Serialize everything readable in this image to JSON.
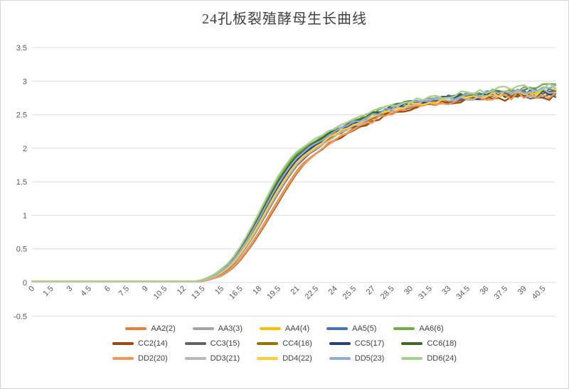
{
  "title": "24孔板裂殖酵母生长曲线",
  "styles": {
    "background": "#FFFFFF",
    "frame_border": "#D5D5D5",
    "grid_color": "#DCDCDC",
    "axis_text_color": "#595959",
    "title_color": "#404040",
    "legend_text_color": "#404040"
  },
  "chart_data": {
    "type": "line",
    "title": "24孔板裂殖酵母生长曲线",
    "xlabel": "",
    "ylabel": "",
    "grid": "horizontal",
    "legend_position": "bottom",
    "xlim": [
      0,
      41.5
    ],
    "ylim": [
      -0.5,
      3.5
    ],
    "x_start": 0,
    "x_step": 0.5,
    "n_points": 84,
    "x_tick_step": 1.5,
    "x_tick_labels": [
      "0",
      "1.5",
      "3",
      "4.5",
      "6",
      "7.5",
      "9",
      "10.5",
      "12",
      "13.5",
      "15",
      "16.5",
      "18",
      "19.5",
      "21",
      "22.5",
      "24",
      "25.5",
      "27",
      "28.5",
      "30",
      "31.5",
      "33",
      "34.5",
      "36",
      "37.5",
      "39",
      "40.5"
    ],
    "y_ticks": [
      3.5,
      3,
      2.5,
      2,
      1.5,
      1,
      0.5,
      0,
      -0.5
    ],
    "y_tick_labels": [
      "3.5",
      "3",
      "2.5",
      "2",
      "1.5",
      "1",
      "0.5",
      "0",
      "-0.5"
    ],
    "values_formula": "value[i] = base[i] + offset*spread[i] + end_bias*clamp((i-64)/19,0,1) + hashnoise(seed,i)*noise_amp[i]",
    "base": [
      0.02,
      0.02,
      0.02,
      0.02,
      0.02,
      0.02,
      0.02,
      0.02,
      0.02,
      0.02,
      0.02,
      0.02,
      0.02,
      0.02,
      0.02,
      0.02,
      0.02,
      0.02,
      0.02,
      0.02,
      0.02,
      0.02,
      0.02,
      0.02,
      0.02,
      0.02,
      0.02,
      0.03,
      0.06,
      0.1,
      0.15,
      0.22,
      0.31,
      0.43,
      0.57,
      0.72,
      0.88,
      1.05,
      1.22,
      1.38,
      1.53,
      1.67,
      1.79,
      1.89,
      1.97,
      2.04,
      2.1,
      2.17,
      2.23,
      2.28,
      2.32,
      2.37,
      2.41,
      2.46,
      2.5,
      2.54,
      2.58,
      2.61,
      2.64,
      2.66,
      2.68,
      2.7,
      2.72,
      2.74,
      2.75,
      2.77,
      2.78,
      2.79,
      2.8,
      2.81,
      2.82,
      2.83,
      2.84,
      2.85,
      2.85,
      2.86,
      2.86,
      2.87,
      2.87,
      2.88,
      2.88,
      2.89,
      2.89,
      2.9
    ],
    "spread": [
      0,
      0,
      0,
      0,
      0,
      0,
      0,
      0,
      0,
      0,
      0,
      0,
      0,
      0,
      0,
      0,
      0,
      0,
      0,
      0,
      0,
      0,
      0,
      0,
      0,
      0,
      0,
      0.01,
      0.02,
      0.03,
      0.05,
      0.06,
      0.08,
      0.1,
      0.12,
      0.14,
      0.16,
      0.18,
      0.19,
      0.2,
      0.19,
      0.18,
      0.16,
      0.14,
      0.13,
      0.12,
      0.11,
      0.1,
      0.09,
      0.09,
      0.08,
      0.08,
      0.07,
      0.07,
      0.07,
      0.06,
      0.06,
      0.06,
      0.05,
      0.05,
      0.05,
      0.05,
      0.04,
      0.04,
      0.04,
      0.04,
      0.04,
      0.04,
      0.04,
      0.03,
      0.03,
      0.03,
      0.03,
      0.03,
      0.03,
      0.03,
      0.03,
      0.03,
      0.03,
      0.03,
      0.03,
      0.03,
      0.03,
      0.03
    ],
    "noise_amp": [
      0,
      0,
      0,
      0,
      0,
      0,
      0,
      0,
      0,
      0,
      0,
      0,
      0,
      0,
      0,
      0,
      0,
      0,
      0,
      0,
      0,
      0,
      0,
      0,
      0,
      0,
      0,
      0,
      0,
      0,
      0,
      0,
      0,
      0,
      0,
      0,
      0,
      0,
      0,
      0,
      0,
      0,
      0,
      0.01,
      0.01,
      0.015,
      0.015,
      0.02,
      0.02,
      0.02,
      0.02,
      0.025,
      0.025,
      0.025,
      0.03,
      0.03,
      0.03,
      0.03,
      0.03,
      0.035,
      0.035,
      0.035,
      0.04,
      0.04,
      0.04,
      0.04,
      0.045,
      0.045,
      0.045,
      0.045,
      0.05,
      0.05,
      0.05,
      0.05,
      0.05,
      0.055,
      0.055,
      0.055,
      0.055,
      0.06,
      0.06,
      0.06,
      0.06,
      0.06
    ],
    "series": [
      {
        "name": "AA2(2)",
        "color": "#ED7D31",
        "offset": -0.8,
        "seed": 11,
        "end_bias": 0
      },
      {
        "name": "AA3(3)",
        "color": "#A5A5A5",
        "offset": -0.1,
        "seed": 12,
        "end_bias": 0
      },
      {
        "name": "AA4(4)",
        "color": "#FFC000",
        "offset": 0.1,
        "seed": 13,
        "end_bias": 0
      },
      {
        "name": "AA5(5)",
        "color": "#4472C4",
        "offset": 0.3,
        "seed": 14,
        "end_bias": 0.02
      },
      {
        "name": "AA6(6)",
        "color": "#70AD47",
        "offset": 0.8,
        "seed": 15,
        "end_bias": 0.05
      },
      {
        "name": "CC2(14)",
        "color": "#9E480E",
        "offset": -1.0,
        "seed": 21,
        "end_bias": -0.04
      },
      {
        "name": "CC3(15)",
        "color": "#636363",
        "offset": -0.3,
        "seed": 22,
        "end_bias": -0.03
      },
      {
        "name": "CC4(16)",
        "color": "#997300",
        "offset": -0.2,
        "seed": 23,
        "end_bias": 0
      },
      {
        "name": "CC5(17)",
        "color": "#264478",
        "offset": 0.2,
        "seed": 24,
        "end_bias": -0.02
      },
      {
        "name": "CC6(18)",
        "color": "#43682B",
        "offset": 0.6,
        "seed": 25,
        "end_bias": -0.02
      },
      {
        "name": "DD2(20)",
        "color": "#F1975A",
        "offset": -0.9,
        "seed": 31,
        "end_bias": 0
      },
      {
        "name": "DD3(21)",
        "color": "#B7B7B7",
        "offset": -0.2,
        "seed": 32,
        "end_bias": 0
      },
      {
        "name": "DD4(22)",
        "color": "#FFCD33",
        "offset": 0,
        "seed": 33,
        "end_bias": 0.02
      },
      {
        "name": "DD5(23)",
        "color": "#8FAADC",
        "offset": 0.4,
        "seed": 34,
        "end_bias": 0.03
      },
      {
        "name": "DD6(24)",
        "color": "#A9D18E",
        "offset": 1.0,
        "seed": 35,
        "end_bias": 0.06
      }
    ]
  }
}
